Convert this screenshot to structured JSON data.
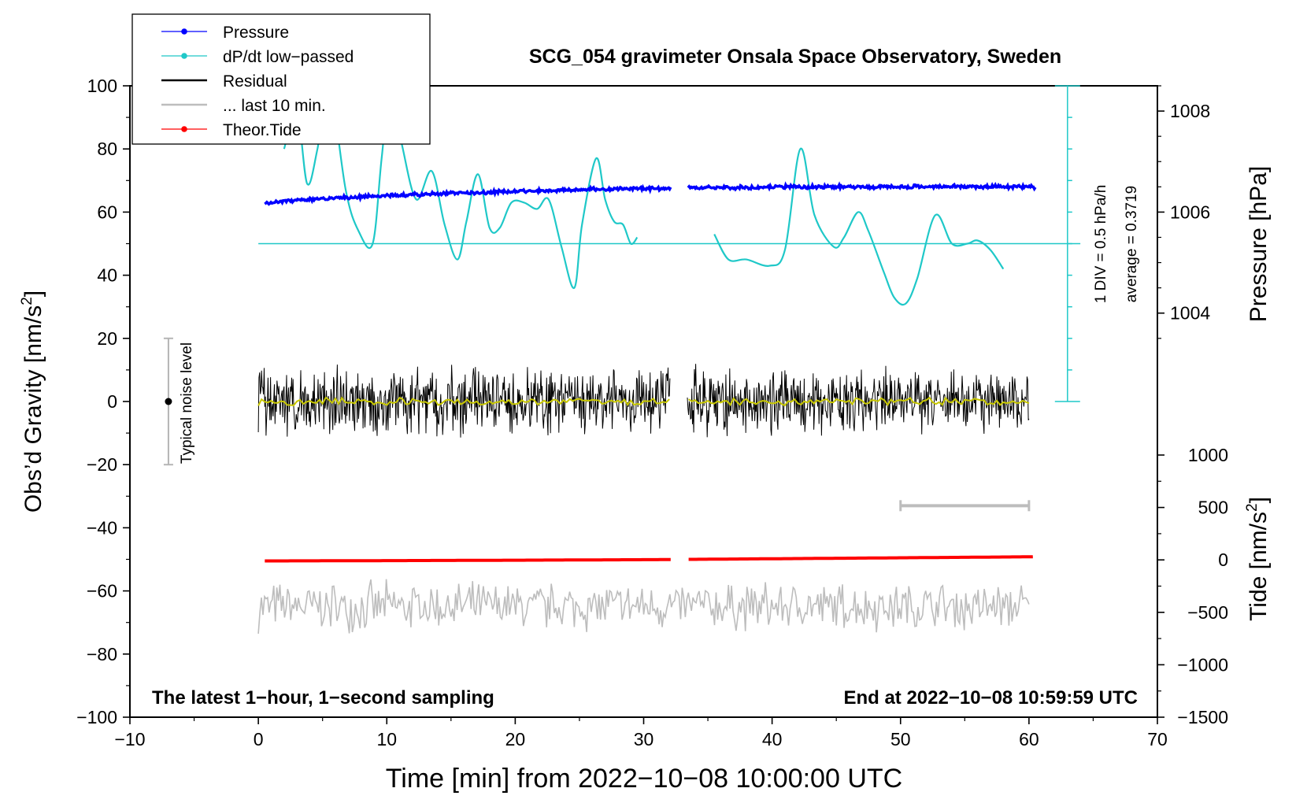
{
  "chart_data": {
    "type": "line",
    "title": "SCG_054 gravimeter Onsala Space Observatory, Sweden",
    "xlabel": "Time [min] from 2022−10−08 10:00:00 UTC",
    "ylabel": "Obs’d Gravity [nm/s",
    "ylabel_sup": "2",
    "ylabel_end": "]",
    "xlim": [
      -10,
      70
    ],
    "ylim": [
      -100,
      100
    ],
    "x_ticks": [
      -10,
      0,
      10,
      20,
      30,
      40,
      50,
      60,
      70
    ],
    "y_ticks": [
      -100,
      -80,
      -60,
      -40,
      -20,
      0,
      20,
      40,
      60,
      80,
      100
    ],
    "right_pressure_axis": {
      "label": "Pressure [hPa]",
      "ticks": [
        1004,
        1006,
        1008
      ],
      "value_at_gravity_60": 1006.0,
      "hpa_per_nms2_unit": 0.0625
    },
    "right_tide_axis": {
      "label": "Tide [nm/s",
      "label_sup": "2",
      "label_end": "]",
      "ticks": [
        -1500,
        -1000,
        -500,
        0,
        500,
        1000
      ],
      "range": [
        -1500,
        1000
      ]
    },
    "legend": {
      "position": "top-left",
      "entries": [
        {
          "label": "Pressure",
          "color": "#0000ff",
          "marker": "dot"
        },
        {
          "label": "dP/dt low−passed",
          "color": "#1fc8c8",
          "marker": "dot"
        },
        {
          "label": "Residual",
          "color": "#000000",
          "marker": "line"
        },
        {
          "label": "... last 10 min.",
          "color": "#bdbdbd",
          "marker": "line"
        },
        {
          "label": "Theor.Tide",
          "color": "#ff0000",
          "marker": "dot"
        }
      ]
    },
    "annotations": {
      "footer_left": "The latest 1−hour, 1−second sampling",
      "footer_right": "End at 2022−10−08 10:59:59 UTC",
      "noise_label": "Typical noise level",
      "noise_range": [
        -20,
        20
      ],
      "noise_x": -7,
      "dpdt_scale": "1 DIV = 0.5 hPa/h",
      "dpdt_average": "average = 0.3719",
      "dpdt_axis_x": 63,
      "dpdt_axis_range": [
        0,
        100
      ],
      "dpdt_baseline_gravity": 50,
      "last10_bar": [
        50,
        60
      ],
      "last10_bar_level": -33
    },
    "gap_minutes": [
      32.1,
      33.4
    ],
    "series": [
      {
        "name": "Pressure",
        "color": "#0000ff",
        "axis": "gravity",
        "x": [
          0.5,
          5,
          10,
          15,
          20,
          25,
          30,
          32,
          33.5,
          40,
          45,
          50,
          55,
          60.5
        ],
        "y": [
          63.0,
          64.2,
          65.2,
          66.0,
          66.6,
          67.1,
          67.5,
          67.6,
          67.8,
          67.9,
          68.0,
          68.0,
          68.0,
          68.0
        ]
      },
      {
        "name": "dP/dt low-passed",
        "color": "#1fc8c8",
        "axis": "gravity",
        "x": [
          2.0,
          3.0,
          3.8,
          4.6,
          5.5,
          6.8,
          7.8,
          8.9,
          9.6,
          10.3,
          11.2,
          12.3,
          13.5,
          14.5,
          15.5,
          16.2,
          17.1,
          18.0,
          18.8,
          19.7,
          20.7,
          21.7,
          22.6,
          23.6,
          24.6,
          25.2,
          26.3,
          27.0,
          27.7,
          28.4,
          29.0,
          29.5,
          35.5,
          36.6,
          38.0,
          39.8,
          41.0,
          42.2,
          43.3,
          44.8,
          45.6,
          46.7,
          47.5,
          48.7,
          49.5,
          50.4,
          51.3,
          52.7,
          54.0,
          55.2,
          56.0,
          57.0,
          58.0
        ],
        "y": [
          80,
          92,
          69,
          80,
          101,
          67,
          54,
          50,
          77,
          100,
          81,
          64,
          73,
          56,
          45,
          57,
          72,
          55,
          55,
          63,
          63,
          61,
          64,
          49,
          36,
          56,
          77,
          64,
          57,
          56,
          50,
          52,
          53,
          45,
          45,
          43,
          48,
          80,
          59,
          49,
          52,
          60,
          54,
          41,
          33,
          31,
          39,
          59,
          50,
          50,
          51,
          48,
          42
        ]
      },
      {
        "name": "Residual",
        "color": "#000000",
        "axis": "gravity",
        "x": [
          0,
          10,
          20,
          30,
          32,
          33.5,
          40,
          50,
          60
        ],
        "y": [
          0,
          0,
          0,
          0,
          0,
          0,
          0,
          0,
          0
        ],
        "noise_amplitude": 12
      },
      {
        "name": "Residual smoothed",
        "color": "#c8c800",
        "axis": "gravity",
        "x": [
          0,
          10,
          20,
          30,
          32,
          33.5,
          40,
          50,
          60
        ],
        "y": [
          0,
          0,
          0,
          0,
          0,
          0,
          0,
          0,
          0
        ],
        "noise_amplitude": 1.5
      },
      {
        "name": "... last 10 min.",
        "color": "#bdbdbd",
        "axis": "gravity",
        "x": [
          0,
          10,
          20,
          30,
          32,
          33.5,
          40,
          50,
          60
        ],
        "y": [
          -65,
          -65,
          -65,
          -65,
          -65,
          -65,
          -65,
          -65,
          -65
        ],
        "noise_amplitude": 9
      },
      {
        "name": "Theor.Tide",
        "color": "#ff0000",
        "axis": "tide",
        "x": [
          0.5,
          10,
          20,
          30,
          32,
          33.5,
          40,
          50,
          60.5
        ],
        "y": [
          -10,
          -7,
          -3,
          2,
          3,
          5,
          11,
          20,
          30
        ]
      }
    ]
  }
}
